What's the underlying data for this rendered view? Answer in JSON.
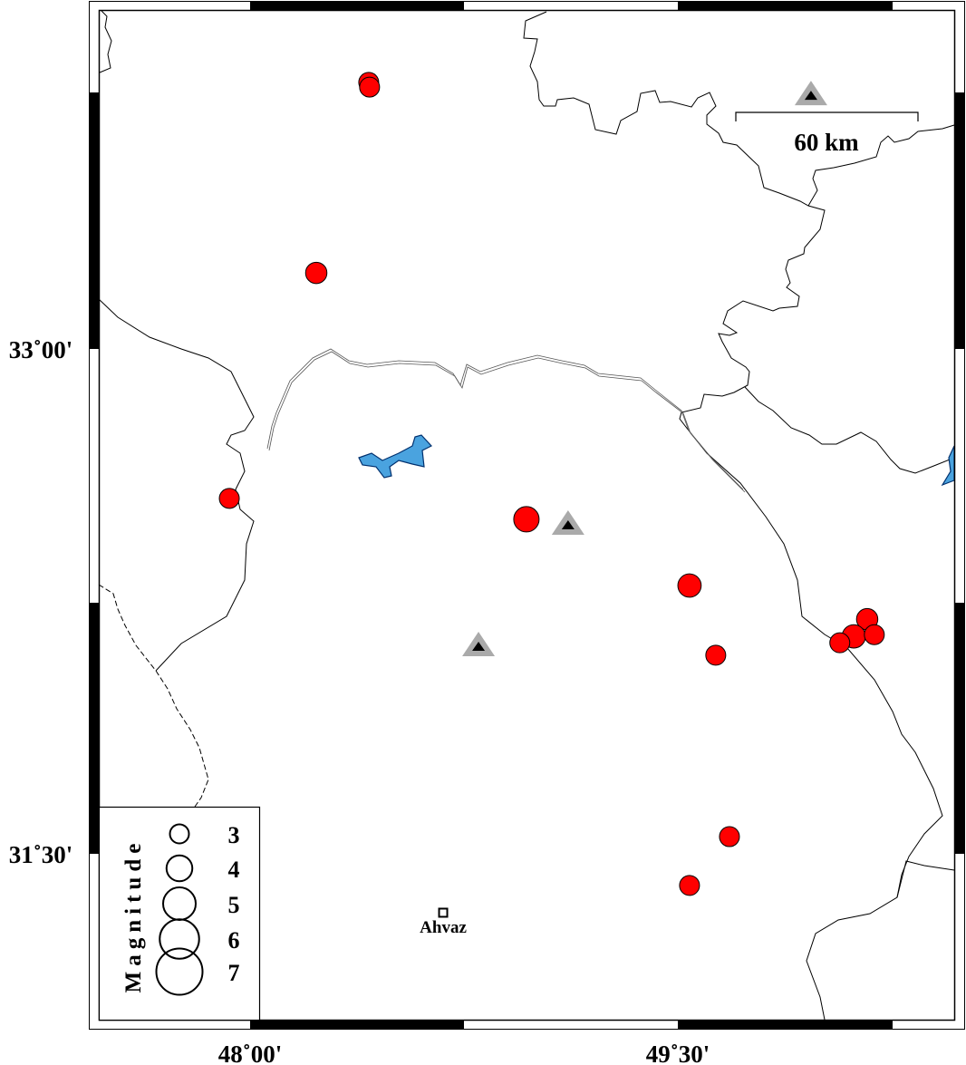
{
  "map": {
    "projection_extent": {
      "lon_min_tick": "48°00'",
      "lat_ticks": [
        "33°00'",
        "31°30'"
      ]
    },
    "axis_labels": {
      "lat_33_00": "33˚00'",
      "lat_31_30": "31˚30'",
      "lon_48_00": "48˚00'",
      "lon_49_30": "49˚30'"
    },
    "colors": {
      "event_fill": "#ff0000",
      "station_outer": "#aaaaaa",
      "station_inner": "#000000",
      "water": "#4aa3df"
    },
    "scale_bar": {
      "label": "60 km",
      "distance_km": 60
    },
    "city": {
      "name": "Ahvaz",
      "lon": 48.677,
      "lat": 31.325,
      "symbol": "square"
    },
    "legend": {
      "title": "Magnitude",
      "entries": [
        {
          "magnitude": 3,
          "label": "3"
        },
        {
          "magnitude": 4,
          "label": "4"
        },
        {
          "magnitude": 5,
          "label": "5"
        },
        {
          "magnitude": 6,
          "label": "6"
        },
        {
          "magnitude": 7,
          "label": "7"
        }
      ]
    },
    "stations": [
      {
        "lon": 49.967,
        "lat": 33.751
      },
      {
        "lon": 49.115,
        "lat": 32.475
      },
      {
        "lon": 48.801,
        "lat": 32.114
      }
    ],
    "events": [
      {
        "lon": 48.416,
        "lat": 33.792,
        "magnitude": 3.0
      },
      {
        "lon": 48.419,
        "lat": 33.778,
        "magnitude": 3.0
      },
      {
        "lon": 48.232,
        "lat": 33.226,
        "magnitude": 3.2
      },
      {
        "lon": 47.927,
        "lat": 32.556,
        "magnitude": 3.0
      },
      {
        "lon": 48.969,
        "lat": 32.494,
        "magnitude": 3.8
      },
      {
        "lon": 49.541,
        "lat": 32.297,
        "magnitude": 3.5
      },
      {
        "lon": 49.633,
        "lat": 32.09,
        "magnitude": 3.0
      },
      {
        "lon": 50.164,
        "lat": 32.197,
        "magnitude": 3.2
      },
      {
        "lon": 50.117,
        "lat": 32.146,
        "magnitude": 3.5
      },
      {
        "lon": 50.068,
        "lat": 32.127,
        "magnitude": 3.0
      },
      {
        "lon": 50.189,
        "lat": 32.151,
        "magnitude": 3.0
      },
      {
        "lon": 49.681,
        "lat": 31.551,
        "magnitude": 3.0
      },
      {
        "lon": 49.541,
        "lat": 31.406,
        "magnitude": 3.0
      }
    ]
  }
}
